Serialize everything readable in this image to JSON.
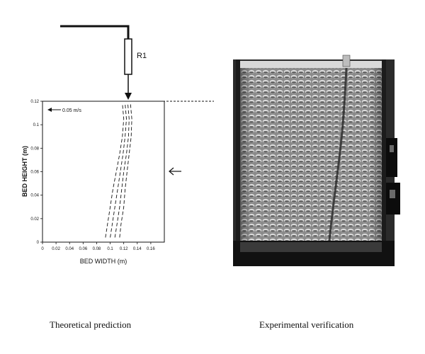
{
  "resistor": {
    "label": "R1"
  },
  "velocity_arrow": {
    "label": "0.05 m/s"
  },
  "chart_data": {
    "type": "line",
    "title": "",
    "xlabel": "BED WIDTH (m)",
    "ylabel": "BED HEIGHT (m)",
    "xlim": [
      0,
      0.18
    ],
    "ylim": [
      0,
      0.12
    ],
    "xticks": [
      "0",
      "0.02",
      "0.04",
      "0.06",
      "0.08",
      "0.1",
      "0.12",
      "0.14",
      "0.16"
    ],
    "yticks": [
      "0",
      "0.02",
      "0.04",
      "0.06",
      "0.08",
      "0.1",
      "0.12"
    ],
    "grid": false,
    "line_style": "dashed",
    "series": [
      {
        "points": [
          [
            0.093,
            0.004
          ],
          [
            0.096,
            0.015
          ],
          [
            0.1,
            0.03
          ],
          [
            0.104,
            0.045
          ],
          [
            0.109,
            0.06
          ],
          [
            0.114,
            0.075
          ],
          [
            0.118,
            0.09
          ],
          [
            0.12,
            0.105
          ],
          [
            0.118,
            0.118
          ]
        ]
      },
      {
        "points": [
          [
            0.1,
            0.004
          ],
          [
            0.103,
            0.015
          ],
          [
            0.107,
            0.03
          ],
          [
            0.111,
            0.045
          ],
          [
            0.115,
            0.06
          ],
          [
            0.119,
            0.075
          ],
          [
            0.122,
            0.09
          ],
          [
            0.124,
            0.105
          ],
          [
            0.122,
            0.118
          ]
        ]
      },
      {
        "points": [
          [
            0.107,
            0.004
          ],
          [
            0.11,
            0.015
          ],
          [
            0.114,
            0.03
          ],
          [
            0.117,
            0.045
          ],
          [
            0.12,
            0.06
          ],
          [
            0.124,
            0.075
          ],
          [
            0.127,
            0.09
          ],
          [
            0.128,
            0.105
          ],
          [
            0.126,
            0.118
          ]
        ]
      },
      {
        "points": [
          [
            0.114,
            0.004
          ],
          [
            0.116,
            0.015
          ],
          [
            0.12,
            0.03
          ],
          [
            0.122,
            0.045
          ],
          [
            0.125,
            0.06
          ],
          [
            0.128,
            0.075
          ],
          [
            0.131,
            0.09
          ],
          [
            0.132,
            0.105
          ],
          [
            0.13,
            0.118
          ]
        ]
      }
    ]
  },
  "captions": {
    "left": "Theoretical prediction",
    "right": "Experimental verification"
  }
}
